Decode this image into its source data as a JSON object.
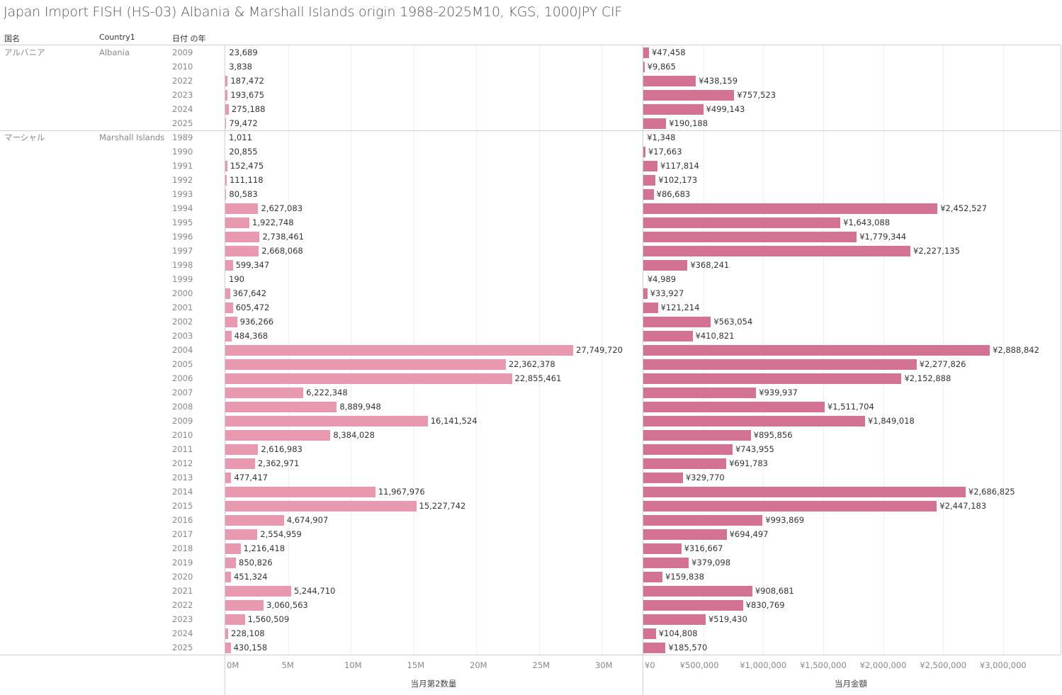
{
  "title": "Japan Import FISH (HS-03) Albania & Marshall Islands origin 1988-2025M10, KGS, 1000JPY CIF",
  "headers": {
    "col1": "国名",
    "col2": "Country1",
    "col3": "日付 の年"
  },
  "colors": {
    "quantity_bar": "#e899b0",
    "amount_bar": "#d47294"
  },
  "chart_data": [
    {
      "type": "bar",
      "orientation": "horizontal",
      "xlabel": "当月第2数量",
      "xlim": [
        0,
        33000000
      ],
      "ticks": [
        "0M",
        "5M",
        "10M",
        "15M",
        "20M",
        "25M",
        "30M"
      ],
      "tick_values": [
        0,
        5000000,
        10000000,
        15000000,
        20000000,
        25000000,
        30000000
      ],
      "grid": true,
      "series_name": "当月第2数量"
    },
    {
      "type": "bar",
      "orientation": "horizontal",
      "xlabel": "当月金額",
      "xlim": [
        0,
        3500000
      ],
      "ticks": [
        "¥0",
        "¥500,000",
        "¥1,000,000",
        "¥1,500,000",
        "¥2,000,000",
        "¥2,500,000",
        "¥3,000,000"
      ],
      "tick_values": [
        0,
        500000,
        1000000,
        1500000,
        2000000,
        2500000,
        3000000
      ],
      "grid": true,
      "series_name": "当月金額"
    }
  ],
  "groups": [
    {
      "name_jp": "アルバニア",
      "name_en": "Albania",
      "rows": [
        {
          "year": "2009",
          "qty": 23689,
          "amt": 47458
        },
        {
          "year": "2010",
          "qty": 3838,
          "amt": 9865
        },
        {
          "year": "2022",
          "qty": 187472,
          "amt": 438159
        },
        {
          "year": "2023",
          "qty": 193675,
          "amt": 757523
        },
        {
          "year": "2024",
          "qty": 275188,
          "amt": 499143
        },
        {
          "year": "2025",
          "qty": 79472,
          "amt": 190188
        }
      ]
    },
    {
      "name_jp": "マーシャル",
      "name_en": "Marshall Islands",
      "rows": [
        {
          "year": "1989",
          "qty": 1011,
          "amt": 1348
        },
        {
          "year": "1990",
          "qty": 20855,
          "amt": 17663
        },
        {
          "year": "1991",
          "qty": 152475,
          "amt": 117814
        },
        {
          "year": "1992",
          "qty": 111118,
          "amt": 102173
        },
        {
          "year": "1993",
          "qty": 80583,
          "amt": 86683
        },
        {
          "year": "1994",
          "qty": 2627083,
          "amt": 2452527
        },
        {
          "year": "1995",
          "qty": 1922748,
          "amt": 1643088
        },
        {
          "year": "1996",
          "qty": 2738461,
          "amt": 1779344
        },
        {
          "year": "1997",
          "qty": 2668068,
          "amt": 2227135
        },
        {
          "year": "1998",
          "qty": 599347,
          "amt": 368241
        },
        {
          "year": "1999",
          "qty": 190,
          "amt": 4989
        },
        {
          "year": "2000",
          "qty": 367642,
          "amt": 33927
        },
        {
          "year": "2001",
          "qty": 605472,
          "amt": 121214
        },
        {
          "year": "2002",
          "qty": 936266,
          "amt": 563054
        },
        {
          "year": "2003",
          "qty": 484368,
          "amt": 410821
        },
        {
          "year": "2004",
          "qty": 27749720,
          "amt": 2888842
        },
        {
          "year": "2005",
          "qty": 22362378,
          "amt": 2277826
        },
        {
          "year": "2006",
          "qty": 22855461,
          "amt": 2152888
        },
        {
          "year": "2007",
          "qty": 6222348,
          "amt": 939937
        },
        {
          "year": "2008",
          "qty": 8889948,
          "amt": 1511704
        },
        {
          "year": "2009",
          "qty": 16141524,
          "amt": 1849018
        },
        {
          "year": "2010",
          "qty": 8384028,
          "amt": 895856
        },
        {
          "year": "2011",
          "qty": 2616983,
          "amt": 743955
        },
        {
          "year": "2012",
          "qty": 2362971,
          "amt": 691783
        },
        {
          "year": "2013",
          "qty": 477417,
          "amt": 329770
        },
        {
          "year": "2014",
          "qty": 11967976,
          "amt": 2686825
        },
        {
          "year": "2015",
          "qty": 15227742,
          "amt": 2447183
        },
        {
          "year": "2016",
          "qty": 4674907,
          "amt": 993869
        },
        {
          "year": "2017",
          "qty": 2554959,
          "amt": 694497
        },
        {
          "year": "2018",
          "qty": 1216418,
          "amt": 316667
        },
        {
          "year": "2019",
          "qty": 850826,
          "amt": 379098
        },
        {
          "year": "2020",
          "qty": 451324,
          "amt": 159838
        },
        {
          "year": "2021",
          "qty": 5244710,
          "amt": 908681
        },
        {
          "year": "2022",
          "qty": 3060563,
          "amt": 830769
        },
        {
          "year": "2023",
          "qty": 1560509,
          "amt": 519430
        },
        {
          "year": "2024",
          "qty": 228108,
          "amt": 104808
        },
        {
          "year": "2025",
          "qty": 430158,
          "amt": 185570
        }
      ]
    }
  ]
}
